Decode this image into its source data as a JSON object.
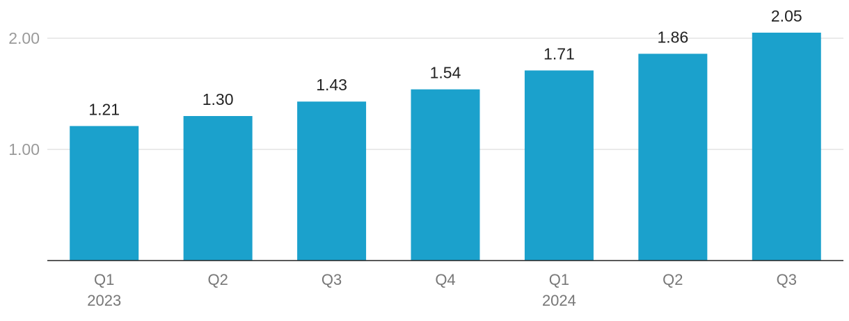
{
  "chart_data": {
    "type": "bar",
    "title": "",
    "xlabel": "",
    "ylabel": "",
    "categories": [
      "Q1",
      "Q2",
      "Q3",
      "Q4",
      "Q1",
      "Q2",
      "Q3"
    ],
    "category_groups": [
      {
        "label": "2023",
        "start": 0,
        "end": 0
      },
      {
        "label": "2024",
        "start": 4,
        "end": 4
      }
    ],
    "series": [
      {
        "values": [
          1.21,
          1.3,
          1.43,
          1.54,
          1.71,
          1.86,
          2.05
        ]
      }
    ],
    "data_labels": [
      "1.21",
      "1.30",
      "1.43",
      "1.54",
      "1.71",
      "1.86",
      "2.05"
    ],
    "yticks": [
      {
        "value": 1.0,
        "label": "1.00"
      },
      {
        "value": 2.0,
        "label": "2.00"
      }
    ],
    "ylim": [
      0,
      2.0
    ],
    "grid": true,
    "legend": "none",
    "bar_color": "#1ba1cc"
  }
}
